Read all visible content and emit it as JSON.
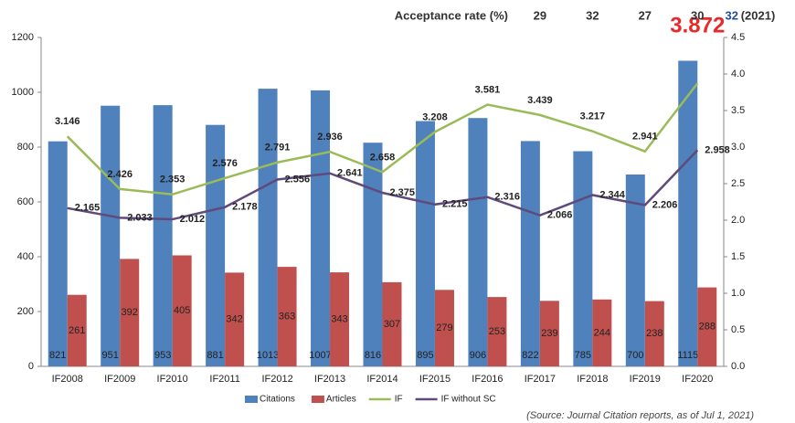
{
  "chart_data": {
    "type": "bar_line",
    "categories": [
      "IF2008",
      "IF2009",
      "IF2010",
      "IF2011",
      "IF2012",
      "IF2013",
      "IF2014",
      "IF2015",
      "IF2016",
      "IF2017",
      "IF2018",
      "IF2019",
      "IF2020"
    ],
    "series": [
      {
        "name": "Citations",
        "type": "bar",
        "color": "#4f81bd",
        "values": [
          821,
          951,
          953,
          881,
          1013,
          1007,
          816,
          895,
          906,
          822,
          785,
          700,
          1115
        ]
      },
      {
        "name": "Articles",
        "type": "bar",
        "color": "#c0504d",
        "values": [
          261,
          392,
          405,
          342,
          363,
          343,
          307,
          279,
          253,
          239,
          244,
          238,
          288
        ]
      },
      {
        "name": "IF",
        "type": "line",
        "axis": "y2",
        "color": "#9bbb59",
        "values": [
          3.146,
          2.426,
          2.353,
          2.576,
          2.791,
          2.936,
          2.658,
          3.208,
          3.581,
          3.439,
          3.217,
          2.941,
          3.872
        ]
      },
      {
        "name": "IF without SC",
        "type": "line",
        "axis": "y2",
        "color": "#604a7b",
        "values": [
          2.165,
          2.033,
          2.012,
          2.178,
          2.556,
          2.641,
          2.375,
          2.215,
          2.316,
          2.066,
          2.344,
          2.206,
          2.958
        ]
      }
    ],
    "ylim": [
      0,
      1200
    ],
    "yticks": [
      0,
      200,
      400,
      600,
      800,
      1000,
      1200
    ],
    "y2lim": [
      0,
      4.5
    ],
    "y2ticks": [
      {
        "value": 0,
        "label": "0.0"
      },
      {
        "value": 0.5,
        "label": "0.5"
      },
      {
        "value": 1,
        "label": "1.0"
      },
      {
        "value": 1.5,
        "label": "1.5"
      },
      {
        "value": 2,
        "label": "2.0"
      },
      {
        "value": 2.5,
        "label": "2.5"
      },
      {
        "value": 3,
        "label": "3.0"
      },
      {
        "value": 3.5,
        "label": "3.5"
      },
      {
        "value": 4,
        "label": "4.0"
      },
      {
        "value": 4.5,
        "label": "4.5"
      }
    ],
    "acceptance_rate": {
      "label": "Acceptance rate (%)",
      "values": [
        29,
        32,
        27,
        30,
        32
      ],
      "last_note": "(2021)"
    },
    "source": "(Source: Journal Citation reports, as of  Jul 1, 2021)",
    "legend": "bottom"
  }
}
